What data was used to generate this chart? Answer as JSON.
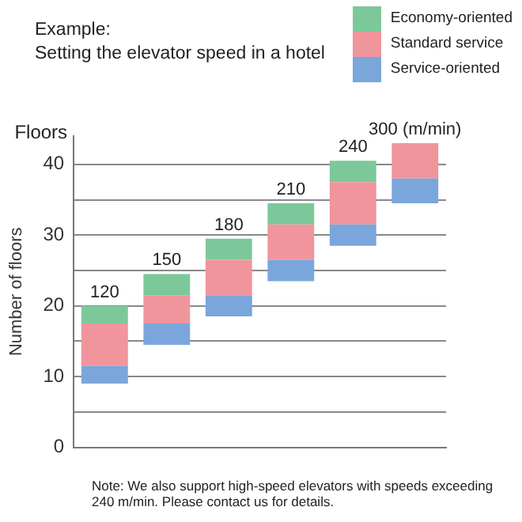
{
  "chart_data": {
    "type": "bar",
    "title": "Example:",
    "subtitle": "Setting the elevator speed in a hotel",
    "ylabel": "Number of floors",
    "categories": [
      "120",
      "150",
      "180",
      "210",
      "240",
      "300 (m/min)"
    ],
    "series": [
      {
        "name": "Service-oriented",
        "color": "#7aa6dc",
        "base": [
          9,
          14.5,
          18.5,
          23.5,
          28.5,
          34.5
        ],
        "values": [
          2.5,
          3,
          3,
          3,
          3,
          3.5
        ]
      },
      {
        "name": "Standard service",
        "color": "#f0959b",
        "base": [
          11.5,
          17.5,
          21.5,
          26.5,
          31.5,
          38
        ],
        "values": [
          6,
          4,
          5,
          5,
          6,
          5
        ]
      },
      {
        "name": "Economy-oriented",
        "color": "#7dc89a",
        "base": [
          17.5,
          21.5,
          26.5,
          31.5,
          37.5,
          null
        ],
        "values": [
          2.5,
          3,
          3,
          3,
          3,
          null
        ]
      }
    ],
    "ylim": [
      0,
      44
    ],
    "yticks": [
      0,
      {
        "value": 5,
        "label": null
      },
      10,
      {
        "value": 15,
        "label": null
      },
      20,
      {
        "value": 25,
        "label": null
      },
      30,
      {
        "value": 35,
        "label": null
      },
      40
    ],
    "grid": "y",
    "legend": "top right",
    "tick_labels": "y",
    "annotations": [
      "Floors",
      "Note: We also support high-speed elevators with speeds exceeding 240 m/min. Please contact us for details."
    ]
  }
}
